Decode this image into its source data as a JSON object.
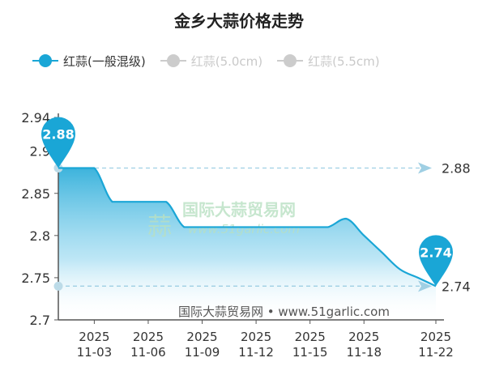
{
  "title": "金乡大蒜价格走势",
  "legend": [
    {
      "label": "红蒜(一般混级)",
      "active": true
    },
    {
      "label": "红蒜(5.0cm)",
      "active": false
    },
    {
      "label": "红蒜(5.5cm)",
      "active": false
    }
  ],
  "colors": {
    "accent": "#1aa6d6",
    "inactive": "#cccccc",
    "reference": "#9fcfe3"
  },
  "watermark": {
    "text": "国际大蒜贸易网",
    "url": "www.51garlic.com"
  },
  "footer_source": "国际大蒜贸易网 • www.51garlic.com",
  "chart_data": {
    "type": "area",
    "title": "金乡大蒜价格走势",
    "ylim": [
      2.7,
      2.94
    ],
    "y_ticks": [
      "2.94",
      "2.9",
      "2.85",
      "2.8",
      "2.75",
      "2.7"
    ],
    "x_ticks": [
      "2025\n11-03",
      "2025\n11-06",
      "2025\n11-09",
      "2025\n11-12",
      "2025\n11-15",
      "2025\n11-18",
      "2025\n11-22"
    ],
    "series": [
      {
        "name": "红蒜(一般混级)",
        "values": [
          {
            "date": "2025-11-01",
            "value": 2.88
          },
          {
            "date": "2025-11-02",
            "value": 2.88
          },
          {
            "date": "2025-11-03",
            "value": 2.88
          },
          {
            "date": "2025-11-04",
            "value": 2.84
          },
          {
            "date": "2025-11-05",
            "value": 2.84
          },
          {
            "date": "2025-11-06",
            "value": 2.84
          },
          {
            "date": "2025-11-07",
            "value": 2.84
          },
          {
            "date": "2025-11-08",
            "value": 2.81
          },
          {
            "date": "2025-11-09",
            "value": 2.81
          },
          {
            "date": "2025-11-10",
            "value": 2.81
          },
          {
            "date": "2025-11-11",
            "value": 2.81
          },
          {
            "date": "2025-11-12",
            "value": 2.81
          },
          {
            "date": "2025-11-13",
            "value": 2.81
          },
          {
            "date": "2025-11-14",
            "value": 2.81
          },
          {
            "date": "2025-11-15",
            "value": 2.81
          },
          {
            "date": "2025-11-16",
            "value": 2.81
          },
          {
            "date": "2025-11-17",
            "value": 2.82
          },
          {
            "date": "2025-11-18",
            "value": 2.8
          },
          {
            "date": "2025-11-19",
            "value": 2.78
          },
          {
            "date": "2025-11-20",
            "value": 2.76
          },
          {
            "date": "2025-11-21",
            "value": 2.75
          },
          {
            "date": "2025-11-22",
            "value": 2.74
          }
        ]
      }
    ],
    "markers": [
      {
        "label": "2.88",
        "value": 2.88,
        "date": "2025-11-01"
      },
      {
        "label": "2.74",
        "value": 2.74,
        "date": "2025-11-22"
      }
    ],
    "reference_lines": [
      {
        "label": "2.88",
        "value": 2.88
      },
      {
        "label": "2.74",
        "value": 2.74
      }
    ],
    "grid": false,
    "legend_position": "top-left"
  }
}
